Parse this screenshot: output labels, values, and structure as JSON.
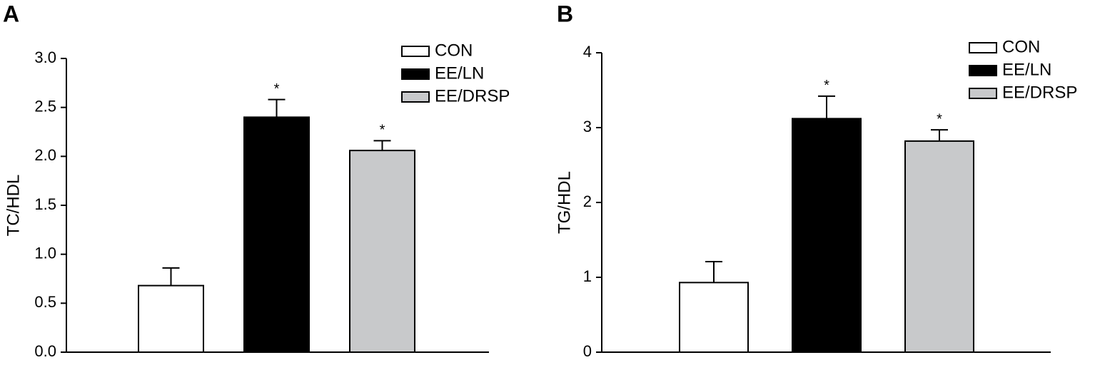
{
  "chart_data": [
    {
      "type": "bar",
      "panel_label": "A",
      "ylabel": "TC/HDL",
      "categories": [
        null
      ],
      "ylim": [
        0,
        3.0
      ],
      "yticks": [
        {
          "value": 0,
          "label": "0.0"
        },
        {
          "value": 0.5,
          "label": "0.5"
        },
        {
          "value": 1.0,
          "label": "1.0"
        },
        {
          "value": 1.5,
          "label": "1.5"
        },
        {
          "value": 2.0,
          "label": "2.0"
        },
        {
          "value": 2.5,
          "label": "2.5"
        },
        {
          "value": 3.0,
          "label": "3.0"
        }
      ],
      "series": [
        {
          "name": "CON",
          "color": "#ffffff",
          "values": [
            0.68
          ],
          "errors": [
            0.18
          ],
          "significance": [
            null
          ]
        },
        {
          "name": "EE/LN",
          "color": "#000000",
          "values": [
            2.4
          ],
          "errors": [
            0.18
          ],
          "significance": [
            "*"
          ]
        },
        {
          "name": "EE/DRSP",
          "color": "#c8c9cb",
          "values": [
            2.06
          ],
          "errors": [
            0.1
          ],
          "significance": [
            "*"
          ]
        }
      ]
    },
    {
      "type": "bar",
      "panel_label": "B",
      "ylabel": "TG/HDL",
      "categories": [
        null
      ],
      "ylim": [
        0,
        4
      ],
      "yticks": [
        0,
        1,
        2,
        3,
        4
      ],
      "series": [
        {
          "name": "CON",
          "color": "#ffffff",
          "values": [
            0.93
          ],
          "errors": [
            0.28
          ],
          "significance": [
            null
          ]
        },
        {
          "name": "EE/LN",
          "color": "#000000",
          "values": [
            3.12
          ],
          "errors": [
            0.3
          ],
          "significance": [
            "*"
          ]
        },
        {
          "name": "EE/DRSP",
          "color": "#c8c9cb",
          "values": [
            2.82
          ],
          "errors": [
            0.15
          ],
          "significance": [
            "*"
          ]
        }
      ]
    }
  ]
}
